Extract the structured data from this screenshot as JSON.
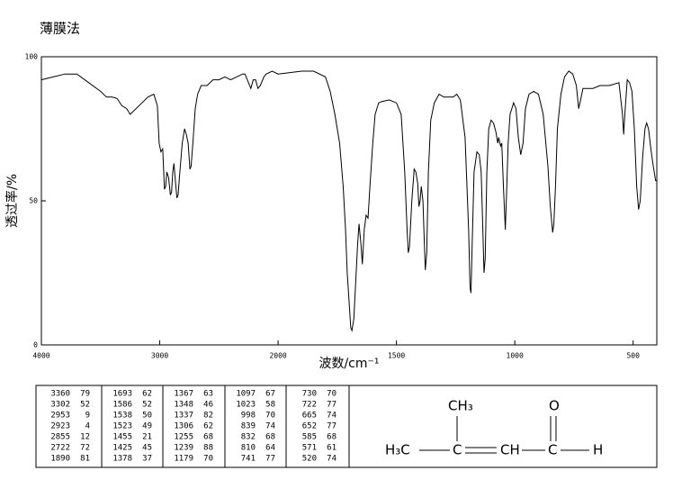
{
  "chart_data": {
    "type": "line",
    "title": "薄膜法",
    "x_label": "波数/cm⁻¹",
    "y_label": "透过率/%",
    "xlim": [
      4000,
      400
    ],
    "xticks": [
      4000,
      3000,
      2000,
      1500,
      1000,
      500
    ],
    "ylim": [
      0,
      100
    ],
    "yticks": [
      0,
      50,
      100
    ],
    "color": "#000000",
    "x": [
      4000,
      3900,
      3800,
      3700,
      3600,
      3500,
      3450,
      3400,
      3360,
      3320,
      3280,
      3250,
      3200,
      3150,
      3100,
      3050,
      3020,
      3005,
      2990,
      2975,
      2960,
      2950,
      2940,
      2925,
      2910,
      2900,
      2890,
      2880,
      2870,
      2855,
      2845,
      2830,
      2810,
      2790,
      2775,
      2760,
      2745,
      2735,
      2720,
      2700,
      2680,
      2650,
      2600,
      2550,
      2500,
      2450,
      2400,
      2350,
      2300,
      2280,
      2250,
      2230,
      2210,
      2190,
      2170,
      2150,
      2120,
      2100,
      2050,
      2000,
      1950,
      1900,
      1850,
      1800,
      1780,
      1760,
      1740,
      1725,
      1715,
      1708,
      1700,
      1693,
      1688,
      1680,
      1672,
      1664,
      1658,
      1650,
      1644,
      1636,
      1628,
      1620,
      1612,
      1600,
      1590,
      1575,
      1560,
      1530,
      1500,
      1480,
      1465,
      1455,
      1450,
      1445,
      1435,
      1425,
      1418,
      1410,
      1405,
      1400,
      1395,
      1388,
      1382,
      1378,
      1372,
      1365,
      1355,
      1340,
      1320,
      1300,
      1280,
      1260,
      1245,
      1230,
      1210,
      1195,
      1189,
      1185,
      1180,
      1172,
      1160,
      1150,
      1142,
      1135,
      1130,
      1125,
      1118,
      1110,
      1100,
      1090,
      1080,
      1072,
      1068,
      1060,
      1055,
      1048,
      1040,
      1035,
      1028,
      1020,
      1005,
      995,
      985,
      975,
      965,
      955,
      940,
      920,
      900,
      880,
      860,
      850,
      840,
      835,
      828,
      820,
      805,
      790,
      772,
      755,
      740,
      730,
      722,
      712,
      690,
      670,
      640,
      600,
      560,
      545,
      540,
      535,
      525,
      515,
      505,
      495,
      485,
      477,
      470,
      460,
      450,
      443,
      435,
      425,
      415,
      405,
      400
    ],
    "values": [
      92,
      93,
      94,
      94,
      91,
      88,
      86,
      86,
      85.5,
      83,
      82,
      80,
      82,
      84,
      86,
      87,
      83,
      70,
      67,
      68,
      54,
      55,
      60,
      58,
      52,
      53,
      60,
      63,
      58,
      51,
      52,
      60,
      70,
      75,
      73,
      70,
      61,
      62,
      70,
      82,
      87,
      90,
      90,
      92,
      92,
      93,
      92,
      93,
      94,
      94,
      91,
      89,
      92,
      92,
      89,
      90,
      93,
      94,
      95,
      94,
      94.5,
      95,
      95,
      93,
      88,
      80,
      70,
      55,
      40,
      25,
      15,
      6,
      5,
      9,
      22,
      35,
      42,
      35,
      28,
      40,
      45,
      44,
      55,
      70,
      80,
      84,
      84.5,
      85,
      84,
      80,
      60,
      40,
      32,
      34,
      50,
      61,
      60,
      56,
      48,
      50,
      55,
      50,
      35,
      26,
      32,
      60,
      78,
      84,
      87,
      86,
      86,
      86,
      87,
      85,
      72,
      40,
      20,
      18,
      35,
      60,
      67,
      66,
      60,
      40,
      25,
      30,
      60,
      75,
      78,
      77,
      74,
      70,
      72,
      69,
      70,
      55,
      40,
      52,
      70,
      80,
      84,
      82,
      72,
      66,
      70,
      82,
      87,
      88,
      87,
      80,
      62,
      48,
      39,
      42,
      55,
      75,
      87,
      93,
      95,
      94,
      90,
      82,
      85,
      89,
      89,
      89,
      90,
      90,
      91,
      80,
      73,
      80,
      92,
      91,
      88,
      75,
      55,
      47,
      50,
      65,
      75,
      77,
      75,
      68,
      62,
      57,
      57
    ]
  },
  "table": {
    "columns": [
      [
        [
          3360,
          79
        ],
        [
          3302,
          52
        ],
        [
          2953,
          9
        ],
        [
          2923,
          4
        ],
        [
          2855,
          12
        ],
        [
          2722,
          72
        ],
        [
          1890,
          81
        ]
      ],
      [
        [
          1693,
          62
        ],
        [
          1586,
          52
        ],
        [
          1538,
          50
        ],
        [
          1523,
          49
        ],
        [
          1455,
          21
        ],
        [
          1425,
          45
        ],
        [
          1378,
          37
        ]
      ],
      [
        [
          1367,
          63
        ],
        [
          1348,
          46
        ],
        [
          1337,
          82
        ],
        [
          1306,
          62
        ],
        [
          1255,
          68
        ],
        [
          1239,
          88
        ],
        [
          1179,
          70
        ]
      ],
      [
        [
          1097,
          67
        ],
        [
          1023,
          58
        ],
        [
          998,
          70
        ],
        [
          839,
          74
        ],
        [
          832,
          68
        ],
        [
          810,
          64
        ],
        [
          741,
          77
        ]
      ],
      [
        [
          730,
          70
        ],
        [
          722,
          77
        ],
        [
          665,
          74
        ],
        [
          652,
          77
        ],
        [
          585,
          68
        ],
        [
          571,
          61
        ],
        [
          520,
          74
        ]
      ]
    ]
  },
  "structure": {
    "labels": [
      "CH₃",
      "O",
      "H₃C",
      "C",
      "CH",
      "C",
      "H"
    ]
  }
}
